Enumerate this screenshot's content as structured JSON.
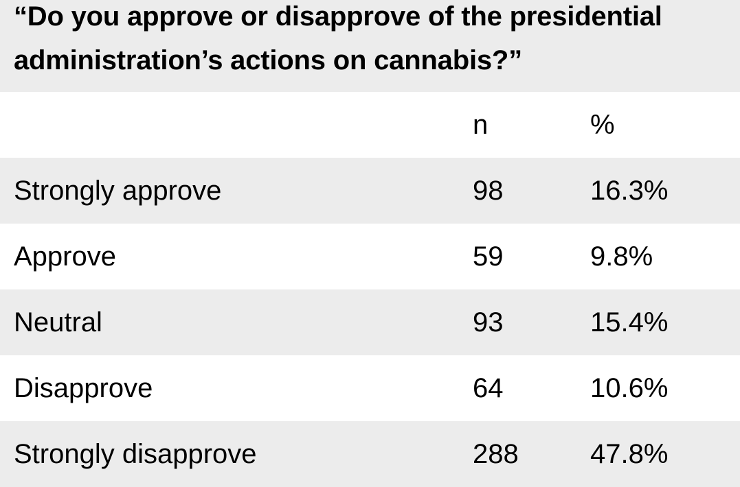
{
  "table": {
    "title_line1": "“Do you approve or disapprove of the presidential",
    "title_line2": "administration’s actions on cannabis?”",
    "headers": {
      "label": "",
      "n": "n",
      "pct": "%"
    },
    "rows": [
      {
        "label": "Strongly approve",
        "n": "98",
        "pct": "16.3%"
      },
      {
        "label": "Approve",
        "n": "59",
        "pct": "9.8%"
      },
      {
        "label": "Neutral",
        "n": "93",
        "pct": "15.4%"
      },
      {
        "label": "Disapprove",
        "n": "64",
        "pct": "10.6%"
      },
      {
        "label": "Strongly disapprove",
        "n": "288",
        "pct": "47.8%"
      }
    ]
  },
  "colors": {
    "shaded_row": "#ececec",
    "plain_row": "#ffffff",
    "text": "#000000"
  }
}
